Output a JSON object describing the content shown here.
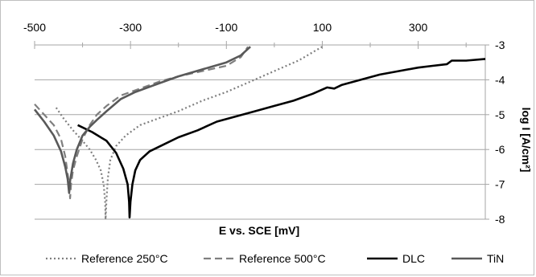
{
  "chart_data": {
    "type": "line",
    "title": "",
    "xlabel": "E vs. SCE [mV]",
    "ylabel": "log I [A/cm²]",
    "xlim": [
      -500,
      440
    ],
    "ylim": [
      -8,
      -3
    ],
    "x_ticks": [
      -500,
      -300,
      -100,
      100,
      300
    ],
    "y_ticks": [
      -3,
      -4,
      -5,
      -6,
      -7,
      -8
    ],
    "x_tick_labels": [
      "-500",
      "-300",
      "-100",
      "100",
      "300"
    ],
    "y_tick_labels": [
      "-3",
      "-4",
      "-5",
      "-6",
      "-7",
      "-8"
    ],
    "grid": "horizontal",
    "legend_position": "bottom",
    "series": [
      {
        "name": "Reference 250°C",
        "color": "#7f7f7f",
        "dash": "dotted",
        "points": [
          [
            -455,
            -4.8
          ],
          [
            -440,
            -5.1
          ],
          [
            -420,
            -5.45
          ],
          [
            -400,
            -5.75
          ],
          [
            -385,
            -6.0
          ],
          [
            -372,
            -6.3
          ],
          [
            -362,
            -6.6
          ],
          [
            -356,
            -7.0
          ],
          [
            -353,
            -7.5
          ],
          [
            -352,
            -8.0
          ],
          [
            -350,
            -7.4
          ],
          [
            -347,
            -6.8
          ],
          [
            -342,
            -6.3
          ],
          [
            -330,
            -5.9
          ],
          [
            -310,
            -5.6
          ],
          [
            -280,
            -5.3
          ],
          [
            -240,
            -5.1
          ],
          [
            -200,
            -4.9
          ],
          [
            -150,
            -4.6
          ],
          [
            -100,
            -4.35
          ],
          [
            -50,
            -4.05
          ],
          [
            0,
            -3.75
          ],
          [
            50,
            -3.45
          ],
          [
            100,
            -3.05
          ]
        ]
      },
      {
        "name": "Reference 500°C",
        "color": "#7f7f7f",
        "dash": "dashed",
        "points": [
          [
            -500,
            -4.7
          ],
          [
            -480,
            -5.0
          ],
          [
            -460,
            -5.3
          ],
          [
            -445,
            -5.7
          ],
          [
            -436,
            -6.2
          ],
          [
            -431,
            -6.7
          ],
          [
            -428,
            -7.0
          ],
          [
            -426,
            -7.4
          ],
          [
            -424,
            -7.0
          ],
          [
            -420,
            -6.6
          ],
          [
            -412,
            -6.2
          ],
          [
            -400,
            -5.7
          ],
          [
            -385,
            -5.3
          ],
          [
            -370,
            -5.0
          ],
          [
            -350,
            -4.75
          ],
          [
            -320,
            -4.45
          ],
          [
            -280,
            -4.25
          ],
          [
            -240,
            -4.05
          ],
          [
            -200,
            -3.9
          ],
          [
            -150,
            -3.75
          ],
          [
            -100,
            -3.6
          ],
          [
            -70,
            -3.35
          ],
          [
            -55,
            -3.05
          ]
        ]
      },
      {
        "name": "DLC",
        "color": "#000000",
        "dash": "solid",
        "points": [
          [
            -410,
            -5.3
          ],
          [
            -380,
            -5.5
          ],
          [
            -350,
            -5.75
          ],
          [
            -330,
            -6.1
          ],
          [
            -315,
            -6.55
          ],
          [
            -306,
            -7.0
          ],
          [
            -303,
            -7.5
          ],
          [
            -302,
            -7.95
          ],
          [
            -300,
            -7.5
          ],
          [
            -296,
            -7.0
          ],
          [
            -290,
            -6.6
          ],
          [
            -280,
            -6.3
          ],
          [
            -260,
            -6.05
          ],
          [
            -230,
            -5.85
          ],
          [
            -200,
            -5.65
          ],
          [
            -160,
            -5.45
          ],
          [
            -120,
            -5.2
          ],
          [
            -80,
            -5.05
          ],
          [
            -40,
            -4.9
          ],
          [
            0,
            -4.75
          ],
          [
            40,
            -4.6
          ],
          [
            80,
            -4.4
          ],
          [
            110,
            -4.22
          ],
          [
            125,
            -4.25
          ],
          [
            140,
            -4.15
          ],
          [
            180,
            -4.0
          ],
          [
            220,
            -3.85
          ],
          [
            260,
            -3.75
          ],
          [
            300,
            -3.65
          ],
          [
            330,
            -3.6
          ],
          [
            360,
            -3.55
          ],
          [
            370,
            -3.45
          ],
          [
            400,
            -3.45
          ],
          [
            440,
            -3.4
          ]
        ]
      },
      {
        "name": "TiN",
        "color": "#595959",
        "dash": "solid",
        "points": [
          [
            -500,
            -4.85
          ],
          [
            -480,
            -5.2
          ],
          [
            -460,
            -5.6
          ],
          [
            -445,
            -6.05
          ],
          [
            -436,
            -6.5
          ],
          [
            -431,
            -6.85
          ],
          [
            -428,
            -7.25
          ],
          [
            -426,
            -6.9
          ],
          [
            -420,
            -6.4
          ],
          [
            -412,
            -6.0
          ],
          [
            -400,
            -5.6
          ],
          [
            -385,
            -5.35
          ],
          [
            -370,
            -5.15
          ],
          [
            -350,
            -4.9
          ],
          [
            -320,
            -4.55
          ],
          [
            -290,
            -4.35
          ],
          [
            -250,
            -4.15
          ],
          [
            -200,
            -3.9
          ],
          [
            -150,
            -3.7
          ],
          [
            -100,
            -3.5
          ],
          [
            -70,
            -3.3
          ],
          [
            -50,
            -3.05
          ]
        ]
      }
    ]
  }
}
